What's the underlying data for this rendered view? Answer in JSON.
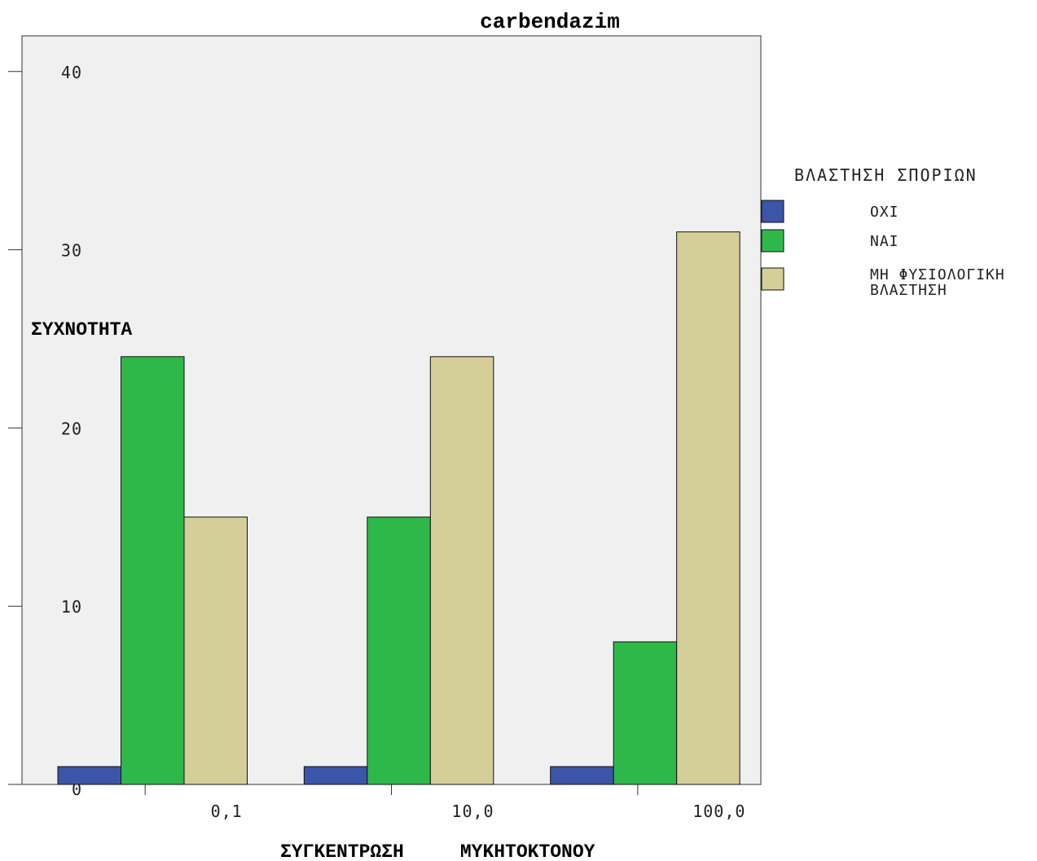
{
  "chart_data": {
    "type": "bar",
    "title": "carbendazim",
    "xlabel": "ΣΥΓΚΕΝΤΡΩΣΗ     ΜΥΚΗΤΟΚΤΟΝΟΥ",
    "ylabel": "ΣΥΧΝΟΤΗΤΑ",
    "categories": [
      "0,1",
      "10,0",
      "100,0"
    ],
    "series": [
      {
        "name": "ΟΧΙ",
        "values": [
          1,
          1,
          1
        ],
        "color": "#3b55a8"
      },
      {
        "name": "ΝΑΙ",
        "values": [
          24,
          15,
          8
        ],
        "color": "#2fb84a"
      },
      {
        "name": "ΜΗ ΦΥΣΙΟΛΟΓΙΚΗ ΒΛΑΣΤΗΣΗ",
        "name_lines": [
          "ΜΗ ΦΥΣΙΟΛΟΓΙΚΗ",
          "ΒΛΑΣΤΗΣΗ"
        ],
        "values": [
          15,
          24,
          31
        ],
        "color": "#d4ce98"
      }
    ],
    "ylim": [
      0,
      42
    ],
    "yticks": [
      0,
      10,
      20,
      30,
      40
    ],
    "ytick_labels": [
      "0",
      "10",
      "20",
      "30",
      "40"
    ],
    "legend": {
      "title": "ΒΛΑΣΤΗΣΗ ΣΠΟΡΙΩΝ",
      "placement": "right"
    },
    "plot_background": "#f0f0f0",
    "grid": false
  }
}
